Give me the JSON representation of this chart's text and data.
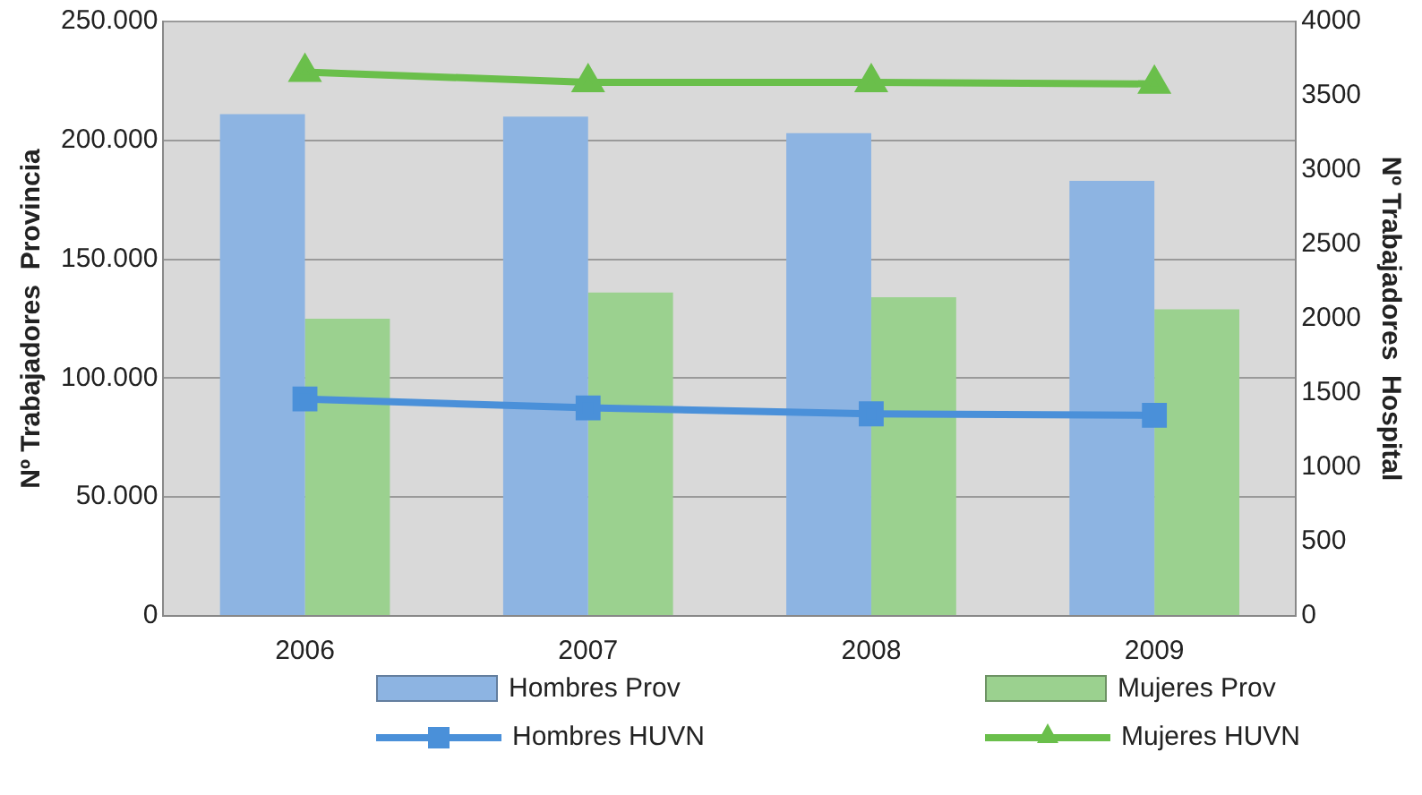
{
  "chart_data": {
    "type": "bar",
    "ylabel": "Nº Trabajadores  Provincia",
    "y2label": "Nº Trabajadores  Hospital",
    "categories": [
      "2006",
      "2007",
      "2008",
      "2009"
    ],
    "series": [
      {
        "name": "Hombres Prov",
        "color": "#8db4e2",
        "values": [
          211000,
          210000,
          203000,
          183000
        ]
      },
      {
        "name": "Mujeres Prov",
        "color": "#9bd18f",
        "values": [
          125000,
          136000,
          134000,
          129000
        ]
      },
      {
        "name": "Hombres HUVN",
        "type": "line",
        "axis": "y2",
        "color": "#4a90d9",
        "marker": "square",
        "values": [
          1460,
          1400,
          1360,
          1350
        ]
      },
      {
        "name": "Mujeres HUVN",
        "type": "line",
        "axis": "y2",
        "color": "#6abf4b",
        "marker": "triangle",
        "values": [
          3660,
          3590,
          3590,
          3580
        ]
      }
    ],
    "ylim": [
      0,
      250000
    ],
    "yticks": [
      {
        "value": 0,
        "label": "0"
      },
      {
        "value": 50000,
        "label": "50.000"
      },
      {
        "value": 100000,
        "label": "100.000"
      },
      {
        "value": 150000,
        "label": "150.000"
      },
      {
        "value": 200000,
        "label": "200.000"
      },
      {
        "value": 250000,
        "label": "250.000"
      }
    ],
    "y2lim": [
      0,
      4000
    ],
    "y2ticks": [
      0,
      500,
      1000,
      1500,
      2000,
      2500,
      3000,
      3500,
      4000
    ],
    "grid": "y",
    "legend": "bottom"
  }
}
